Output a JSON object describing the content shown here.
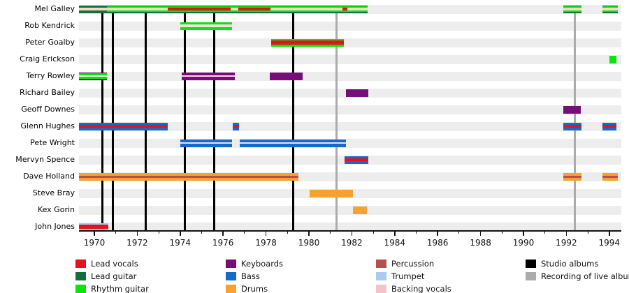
{
  "colors": {
    "lead_vocals": "#E8101E",
    "lead_guitar": "#156F3D",
    "rhythm_guitar": "#0AE50A",
    "keyboards": "#770E77",
    "bass": "#1569C7",
    "drums": "#F8A030",
    "percussion": "#B45050",
    "trumpet": "#AACBF0",
    "backing_vocals": "#F5C2CB",
    "backing_peach": "#F1DCC2",
    "backing_soft": "#F7DCE0",
    "white_stripe": "#FBF0F2",
    "studio_album": "#000000",
    "live_album": "#ABABAB",
    "row_band": "#EDEDED",
    "axis": "#111111",
    "text": "#000000"
  },
  "chart_data": {
    "type": "timeline-gantt",
    "x_axis": {
      "start": 1969.28,
      "end": 1994.56,
      "major_tick_years": [
        1970,
        1972,
        1974,
        1976,
        1978,
        1980,
        1982,
        1984,
        1986,
        1988,
        1990,
        1992,
        1994
      ],
      "major_tick_labels": [
        "1970",
        "1972",
        "1974",
        "1976",
        "1978",
        "1980",
        "1982",
        "1984",
        "1986",
        "1988",
        "1990",
        "1992",
        "1994"
      ],
      "minor_tick_years": [
        1971,
        1973,
        1975,
        1977,
        1979,
        1981,
        1983,
        1985,
        1987,
        1989,
        1991,
        1993
      ]
    },
    "rows": [
      "Mel Galley",
      "Rob Kendrick",
      "Peter Goalby",
      "Craig Erickson",
      "Terry Rowley",
      "Richard Bailey",
      "Geoff Downes",
      "Glenn Hughes",
      "Pete Wright",
      "Mervyn Spence",
      "Dave Holland",
      "Steve Bray",
      "Kex Gorin",
      "John Jones"
    ],
    "bars": [
      {
        "row": 0,
        "start": 1969.28,
        "end": 1982.74,
        "base": "lead_guitar",
        "stripes": [
          {
            "type": "inset",
            "color": "rhythm_guitar",
            "start": 1970.6,
            "end": 1982.74
          },
          {
            "type": "center",
            "color": "backing_peach",
            "start": 1969.28,
            "end": 1982.74,
            "h": 3.2
          },
          {
            "type": "center",
            "color": "lead_vocals",
            "start": 1973.42,
            "end": 1976.35,
            "h": 3.2
          },
          {
            "type": "center",
            "color": "lead_vocals",
            "start": 1976.7,
            "end": 1978.21,
            "h": 3.2
          },
          {
            "type": "center",
            "color": "lead_vocals",
            "start": 1981.55,
            "end": 1981.8,
            "h": 3.2
          }
        ]
      },
      {
        "row": 0,
        "start": 1991.86,
        "end": 1992.7,
        "base": "lead_guitar",
        "stripes": [
          {
            "type": "inset",
            "color": "rhythm_guitar",
            "start": 1991.86,
            "end": 1992.7
          },
          {
            "type": "center",
            "color": "backing_peach",
            "start": 1991.86,
            "end": 1992.7,
            "h": 3.2
          }
        ]
      },
      {
        "row": 0,
        "start": 1993.68,
        "end": 1994.4,
        "base": "lead_guitar",
        "stripes": [
          {
            "type": "inset",
            "color": "rhythm_guitar",
            "start": 1993.68,
            "end": 1994.4
          },
          {
            "type": "center",
            "color": "backing_peach",
            "start": 1993.68,
            "end": 1994.4,
            "h": 3.2
          }
        ]
      },
      {
        "row": 1,
        "start": 1974.01,
        "end": 1976.42,
        "base": "rhythm_guitar",
        "stripes": [
          {
            "type": "center",
            "color": "backing_soft",
            "start": 1974.01,
            "end": 1976.42,
            "h": 4
          }
        ]
      },
      {
        "row": 2,
        "start": 1978.24,
        "end": 1981.63,
        "base": "rhythm_guitar",
        "stripes": [
          {
            "type": "center",
            "color": "lead_vocals",
            "start": 1978.24,
            "end": 1981.63,
            "h": 6
          }
        ]
      },
      {
        "row": 3,
        "start": 1994.01,
        "end": 1994.33,
        "base": "rhythm_guitar",
        "stripes": []
      },
      {
        "row": 4,
        "start": 1969.28,
        "end": 1970.59,
        "base": "keyboards",
        "stripes": [
          {
            "type": "inset",
            "color": "rhythm_guitar",
            "start": 1969.28,
            "end": 1970.59
          },
          {
            "type": "center",
            "color": "white_stripe",
            "start": 1969.28,
            "end": 1970.59,
            "h": 2.5
          }
        ]
      },
      {
        "row": 4,
        "start": 1974.07,
        "end": 1976.55,
        "base": "keyboards",
        "stripes": [
          {
            "type": "center",
            "color": "backing_soft",
            "start": 1974.07,
            "end": 1976.55,
            "h": 2
          }
        ]
      },
      {
        "row": 4,
        "start": 1978.18,
        "end": 1979.71,
        "base": "keyboards",
        "stripes": []
      },
      {
        "row": 5,
        "start": 1981.73,
        "end": 1982.77,
        "base": "keyboards",
        "stripes": []
      },
      {
        "row": 6,
        "start": 1991.86,
        "end": 1992.66,
        "base": "keyboards",
        "stripes": []
      },
      {
        "row": 7,
        "start": 1969.28,
        "end": 1973.42,
        "base": "bass",
        "stripes": [
          {
            "type": "center",
            "color": "lead_vocals",
            "start": 1969.28,
            "end": 1973.42,
            "h": 4.5
          }
        ]
      },
      {
        "row": 7,
        "start": 1976.45,
        "end": 1976.74,
        "base": "bass",
        "stripes": [
          {
            "type": "center",
            "color": "lead_vocals",
            "start": 1976.45,
            "end": 1976.74,
            "h": 4.5
          }
        ]
      },
      {
        "row": 7,
        "start": 1991.86,
        "end": 1992.7,
        "base": "bass",
        "stripes": [
          {
            "type": "center",
            "color": "lead_vocals",
            "start": 1991.86,
            "end": 1992.7,
            "h": 4.5
          }
        ]
      },
      {
        "row": 7,
        "start": 1993.68,
        "end": 1994.33,
        "base": "bass",
        "stripes": [
          {
            "type": "center",
            "color": "lead_vocals",
            "start": 1993.68,
            "end": 1994.33,
            "h": 4.5
          }
        ]
      },
      {
        "row": 8,
        "start": 1974.01,
        "end": 1976.42,
        "base": "bass",
        "stripes": [
          {
            "type": "center",
            "color": "backing_soft",
            "start": 1974.01,
            "end": 1976.42,
            "h": 2.2
          }
        ]
      },
      {
        "row": 8,
        "start": 1976.77,
        "end": 1981.73,
        "base": "bass",
        "stripes": [
          {
            "type": "center",
            "color": "backing_soft",
            "start": 1976.77,
            "end": 1981.73,
            "h": 2.2
          }
        ]
      },
      {
        "row": 9,
        "start": 1981.66,
        "end": 1982.77,
        "base": "bass",
        "stripes": [
          {
            "type": "center",
            "color": "lead_vocals",
            "start": 1981.66,
            "end": 1982.77,
            "h": 4
          }
        ]
      },
      {
        "row": 10,
        "start": 1969.28,
        "end": 1979.51,
        "base": "drums",
        "stripes": [
          {
            "type": "center",
            "color": "percussion",
            "start": 1969.28,
            "end": 1979.51,
            "h": 3
          }
        ]
      },
      {
        "row": 10,
        "start": 1991.86,
        "end": 1992.7,
        "base": "drums",
        "stripes": [
          {
            "type": "center",
            "color": "percussion",
            "start": 1991.86,
            "end": 1992.7,
            "h": 3
          }
        ]
      },
      {
        "row": 10,
        "start": 1993.68,
        "end": 1994.4,
        "base": "drums",
        "stripes": [
          {
            "type": "center",
            "color": "percussion",
            "start": 1993.68,
            "end": 1994.4,
            "h": 3
          }
        ]
      },
      {
        "row": 11,
        "start": 1980.03,
        "end": 1982.05,
        "base": "drums",
        "stripes": []
      },
      {
        "row": 12,
        "start": 1982.05,
        "end": 1982.7,
        "base": "drums",
        "stripes": []
      },
      {
        "row": 13,
        "start": 1969.28,
        "end": 1970.65,
        "base": "trumpet",
        "stripes": [
          {
            "type": "center",
            "color": "lead_vocals",
            "start": 1969.28,
            "end": 1970.65,
            "h": 6
          }
        ]
      }
    ],
    "events": {
      "studio_albums": [
        1970.36,
        1970.85,
        1972.38,
        1974.23,
        1975.6,
        1979.28
      ],
      "live_recordings": [
        1981.3,
        1992.38
      ]
    },
    "legend": {
      "columns": [
        {
          "items": [
            {
              "label": "Lead vocals",
              "color": "lead_vocals"
            },
            {
              "label": "Lead guitar",
              "color": "lead_guitar"
            },
            {
              "label": "Rhythm guitar",
              "color": "rhythm_guitar"
            }
          ]
        },
        {
          "items": [
            {
              "label": "Keyboards",
              "color": "keyboards"
            },
            {
              "label": "Bass",
              "color": "bass"
            },
            {
              "label": "Drums",
              "color": "drums"
            }
          ]
        },
        {
          "items": [
            {
              "label": "Percussion",
              "color": "percussion"
            },
            {
              "label": "Trumpet",
              "color": "trumpet"
            },
            {
              "label": "Backing vocals",
              "color": "backing_vocals"
            }
          ]
        },
        {
          "items": [
            {
              "label": "Studio albums",
              "color": "studio_album"
            },
            {
              "label": "Recording of live albums",
              "color": "live_album"
            }
          ]
        }
      ]
    }
  }
}
